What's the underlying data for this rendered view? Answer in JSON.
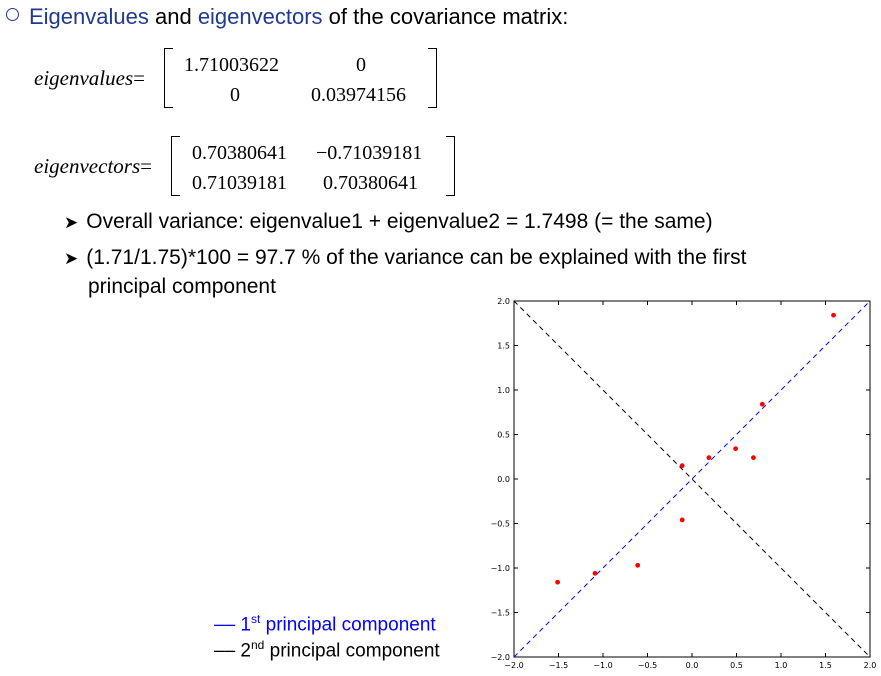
{
  "heading": {
    "part1": "Eigenvalues",
    "part2": " and ",
    "part3": "eigenvectors",
    "part4": " of the covariance matrix:"
  },
  "eigenvalues": {
    "label": "eigenvalues",
    "eq": "=",
    "cells": [
      "1.71003622",
      "0",
      "0",
      "0.03974156"
    ]
  },
  "eigenvectors": {
    "label": "eigenvectors",
    "eq": "=",
    "cells": [
      "0.70380641",
      "−0.71039181",
      "0.71039181",
      "0.70380641"
    ]
  },
  "bullets": [
    "Overall variance: eigenvalue1 + eigenvalue2 = 1.7498 (= the same)",
    "(1.71/1.75)*100 = 97.7 % of the variance can be explained with the first",
    "principal component"
  ],
  "legend": {
    "first_prefix": "1",
    "first_sup": "st",
    "first_text": " principal component",
    "second_prefix": "2",
    "second_sup": "nd",
    "second_text": " principal component",
    "first_color": "#0000ff",
    "second_color": "#000000"
  },
  "chart_data": {
    "type": "scatter",
    "xlim": [
      -2.0,
      2.0
    ],
    "ylim": [
      -2.0,
      2.0
    ],
    "x_ticks": [
      "−2.0",
      "−1.5",
      "−1.0",
      "−0.5",
      "0.0",
      "0.5",
      "1.0",
      "1.5",
      "2.0"
    ],
    "y_ticks": [
      "2.0",
      "1.5",
      "1.0",
      "0.5",
      "0.0",
      "−0.5",
      "−1.0",
      "−1.5",
      "−2.0"
    ],
    "points": [
      {
        "x": -1.51,
        "y": -1.16
      },
      {
        "x": -1.09,
        "y": -1.06
      },
      {
        "x": -0.61,
        "y": -0.97
      },
      {
        "x": -0.11,
        "y": -0.46
      },
      {
        "x": -0.11,
        "y": 0.15
      },
      {
        "x": 0.19,
        "y": 0.24
      },
      {
        "x": 0.49,
        "y": 0.34
      },
      {
        "x": 0.69,
        "y": 0.24
      },
      {
        "x": 0.79,
        "y": 0.84
      },
      {
        "x": 1.59,
        "y": 1.84
      }
    ],
    "point_color": "#ff0000",
    "lines": [
      {
        "slope": 1.0,
        "color": "#0000ff"
      },
      {
        "slope": -1.0,
        "color": "#000000"
      }
    ],
    "grid": false
  }
}
